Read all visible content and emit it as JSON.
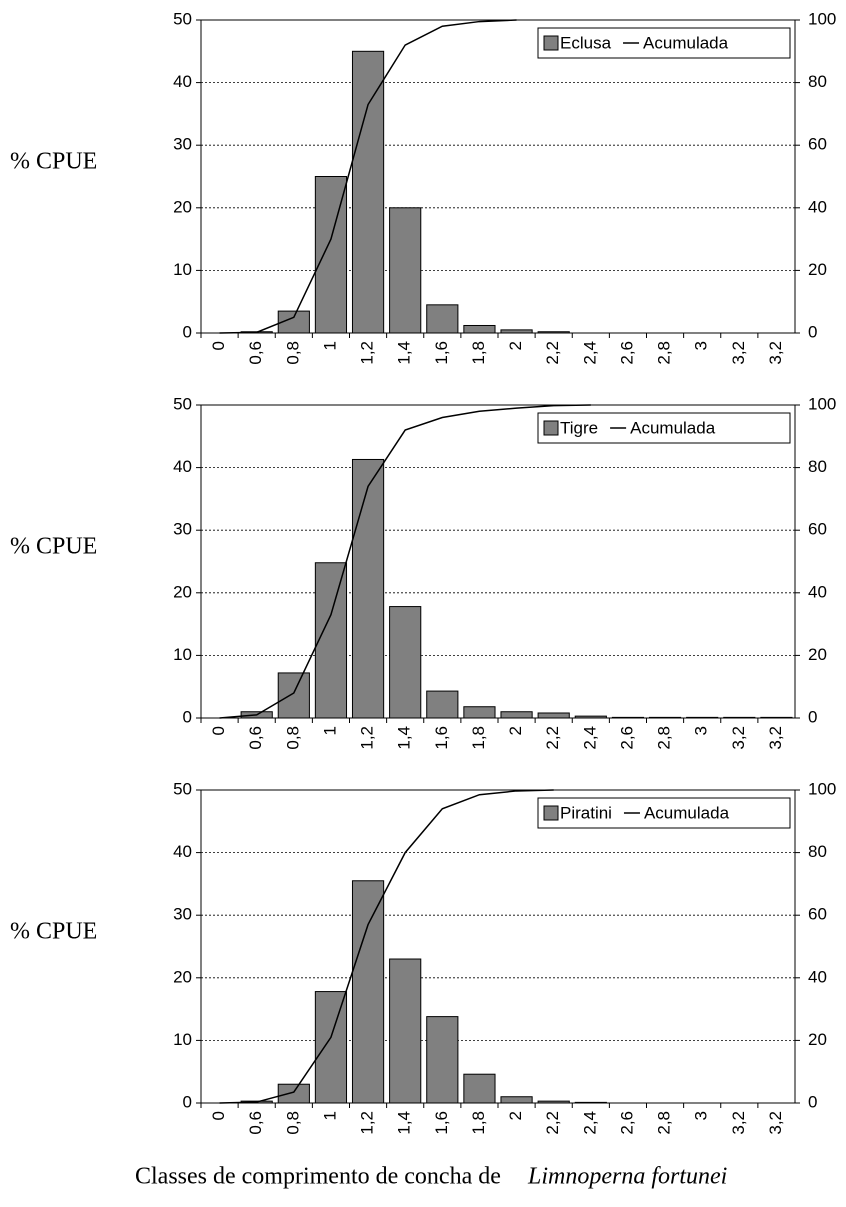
{
  "chart_data": [
    {
      "type": "bar",
      "ylabel": "% CPUE",
      "categories": [
        "0",
        "0,6",
        "0,8",
        "1",
        "1,2",
        "1,4",
        "1,6",
        "1,8",
        "2",
        "2,2",
        "2,4",
        "2,6",
        "2,8",
        "3",
        "3,2",
        "3,2"
      ],
      "series": [
        {
          "name": "Eclusa",
          "color": "#808080",
          "values": [
            0,
            0.2,
            3.5,
            25,
            45,
            20,
            4.5,
            1.2,
            0.5,
            0.2,
            0,
            0,
            0,
            0,
            0,
            0
          ]
        },
        {
          "name": "Acumulada",
          "type": "line",
          "axis": "y2",
          "color": "#000000",
          "values": [
            0,
            0.2,
            5,
            30,
            73,
            92,
            98,
            99.5,
            100,
            null,
            null,
            null,
            null,
            null,
            null,
            null
          ]
        }
      ],
      "ylim": [
        0,
        50
      ],
      "yticks": [
        0,
        10,
        20,
        30,
        40,
        50
      ],
      "y2lim": [
        0,
        100
      ],
      "y2ticks": [
        0,
        20,
        40,
        60,
        80,
        100
      ],
      "y2color": "#800000",
      "grid": true,
      "legend": "upper right"
    },
    {
      "type": "bar",
      "ylabel": "% CPUE",
      "categories": [
        "0",
        "0,6",
        "0,8",
        "1",
        "1,2",
        "1,4",
        "1,6",
        "1,8",
        "2",
        "2,2",
        "2,4",
        "2,6",
        "2,8",
        "3",
        "3,2",
        "3,2"
      ],
      "series": [
        {
          "name": "Tigre",
          "color": "#808080",
          "values": [
            0,
            1,
            7.2,
            24.8,
            41.3,
            17.8,
            4.3,
            1.8,
            1,
            0.8,
            0.3,
            0.1,
            0.1,
            0.1,
            0.1,
            0.1
          ]
        },
        {
          "name": "Acumulada",
          "type": "line",
          "axis": "y2",
          "color": "#000000",
          "values": [
            0,
            1,
            8,
            33,
            74,
            92,
            96,
            98,
            99,
            99.8,
            100,
            null,
            null,
            null,
            null,
            null
          ]
        }
      ],
      "ylim": [
        0,
        50
      ],
      "yticks": [
        0,
        10,
        20,
        30,
        40,
        50
      ],
      "y2lim": [
        0,
        100
      ],
      "y2ticks": [
        0,
        20,
        40,
        60,
        80,
        100
      ],
      "y2color": "#800000",
      "grid": true,
      "legend": "upper right"
    },
    {
      "type": "bar",
      "ylabel": "% CPUE",
      "categories": [
        "0",
        "0,6",
        "0,8",
        "1",
        "1,2",
        "1,4",
        "1,6",
        "1,8",
        "2",
        "2,2",
        "2,4",
        "2,6",
        "2,8",
        "3",
        "3,2",
        "3,2"
      ],
      "series": [
        {
          "name": "Piratini",
          "color": "#808080",
          "values": [
            0,
            0.3,
            3,
            17.8,
            35.5,
            23,
            13.8,
            4.6,
            1,
            0.3,
            0.1,
            0,
            0,
            0,
            0,
            0
          ]
        },
        {
          "name": "Acumulada",
          "type": "line",
          "axis": "y2",
          "color": "#000000",
          "values": [
            0,
            0.3,
            3.5,
            21,
            57,
            80,
            94,
            98.5,
            99.7,
            100,
            null,
            null,
            null,
            null,
            null,
            null
          ]
        }
      ],
      "ylim": [
        0,
        50
      ],
      "yticks": [
        0,
        10,
        20,
        30,
        40,
        50
      ],
      "y2lim": [
        0,
        100
      ],
      "y2ticks": [
        0,
        20,
        40,
        60,
        80,
        100
      ],
      "y2color": "#800000",
      "grid": true,
      "legend": "upper right"
    }
  ],
  "caption": {
    "text": "Classes de comprimento de concha de",
    "species": "Limnoperna fortunei"
  }
}
